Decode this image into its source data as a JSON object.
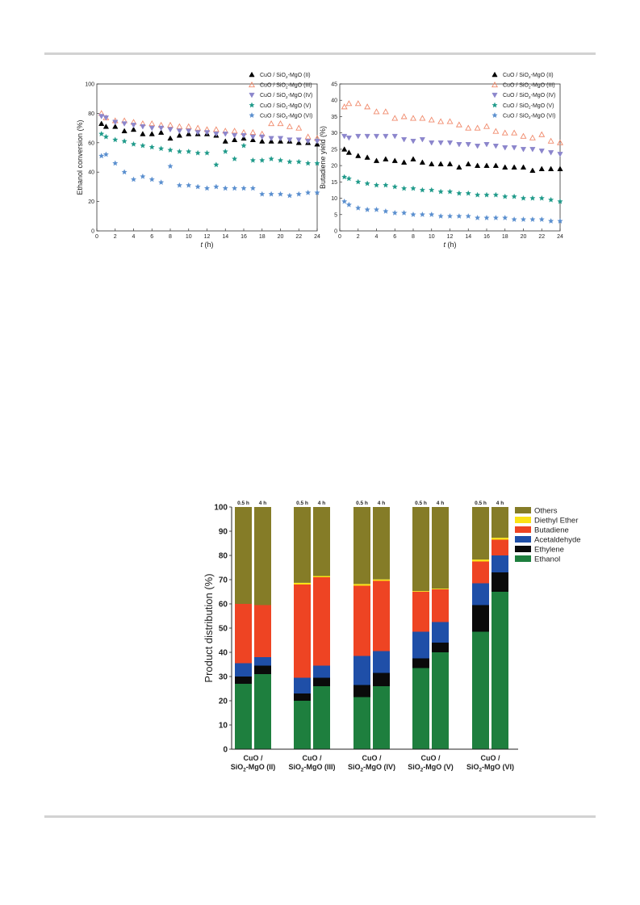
{
  "legend_series": [
    {
      "name": "CuO / SiO2-MgO (II)",
      "main": "CuO / SiO",
      "sub": "2",
      "rest": "-MgO (II)",
      "marker": "triangle-up-filled",
      "color": "#000000"
    },
    {
      "name": "CuO / SiO2-MgO (III)",
      "main": "CuO / SiO",
      "sub": "2",
      "rest": "-MgO (III)",
      "marker": "triangle-up-open",
      "color": "#f08a6c"
    },
    {
      "name": "CuO / SiO2-MgO (IV)",
      "main": "CuO / SiO",
      "sub": "2",
      "rest": "-MgO (IV)",
      "marker": "triangle-down-filled",
      "color": "#8c86cc"
    },
    {
      "name": "CuO / SiO2-MgO (V)",
      "main": "CuO / SiO",
      "sub": "2",
      "rest": "-MgO (V)",
      "marker": "star",
      "color": "#1f9a8a"
    },
    {
      "name": "CuO / SiO2-MgO (VI)",
      "main": "CuO / SiO",
      "sub": "2",
      "rest": "-MgO (VI)",
      "marker": "star",
      "color": "#5a8fcf"
    }
  ],
  "chart_data": [
    {
      "type": "scatter",
      "ylabel": "Ethanol conversion (%)",
      "xlabel_italic": "t",
      "xlabel_rest": " (h)",
      "xlim": [
        0,
        24
      ],
      "ylim": [
        0,
        100
      ],
      "xticks": [
        0,
        2,
        4,
        6,
        8,
        10,
        12,
        14,
        16,
        18,
        20,
        22,
        24
      ],
      "yticks": [
        0,
        20,
        40,
        60,
        80,
        100
      ],
      "x": [
        0.5,
        1,
        2,
        3,
        4,
        5,
        6,
        7,
        8,
        9,
        10,
        11,
        12,
        13,
        14,
        15,
        16,
        17,
        18,
        19,
        20,
        21,
        22,
        23,
        24
      ],
      "series": [
        {
          "name": "CuO / SiO2-MgO (II)",
          "values": [
            73,
            71,
            71,
            68,
            69,
            66,
            66,
            67,
            63,
            65,
            66,
            66,
            66,
            65,
            61,
            62,
            63,
            62,
            61,
            61,
            61,
            61,
            60,
            60,
            59
          ]
        },
        {
          "name": "CuO / SiO2-MgO (III)",
          "values": [
            80,
            77,
            75,
            75,
            74,
            73,
            73,
            72,
            72,
            71,
            71,
            70,
            69,
            69,
            68,
            68,
            67,
            67,
            66,
            73,
            73,
            71,
            70,
            64,
            63
          ]
        },
        {
          "name": "CuO / SiO2-MgO (IV)",
          "values": [
            78,
            77,
            74,
            73,
            72,
            71,
            70,
            70,
            69,
            68,
            68,
            67,
            67,
            66,
            66,
            65,
            65,
            64,
            64,
            63,
            63,
            62,
            62,
            61,
            61
          ]
        },
        {
          "name": "CuO / SiO2-MgO (V)",
          "values": [
            66,
            64,
            62,
            61,
            59,
            58,
            57,
            56,
            55,
            54,
            54,
            53,
            53,
            45,
            54,
            49,
            58,
            48,
            48,
            49,
            48,
            47,
            47,
            46,
            46
          ]
        },
        {
          "name": "CuO / SiO2-MgO (VI)",
          "values": [
            51,
            52,
            46,
            40,
            35,
            37,
            35,
            33,
            44,
            31,
            31,
            30,
            29,
            30,
            29,
            29,
            29,
            29,
            25,
            25,
            25,
            24,
            25,
            26,
            26
          ]
        }
      ]
    },
    {
      "type": "scatter",
      "ylabel": "Butadiene yield (%)",
      "xlabel_italic": "t",
      "xlabel_rest": " (h)",
      "xlim": [
        0,
        24
      ],
      "ylim": [
        0,
        45
      ],
      "xticks": [
        0,
        2,
        4,
        6,
        8,
        10,
        12,
        14,
        16,
        18,
        20,
        22,
        24
      ],
      "yticks": [
        0,
        5,
        10,
        15,
        20,
        25,
        30,
        35,
        40,
        45
      ],
      "x": [
        0.5,
        1,
        2,
        3,
        4,
        5,
        6,
        7,
        8,
        9,
        10,
        11,
        12,
        13,
        14,
        15,
        16,
        17,
        18,
        19,
        20,
        21,
        22,
        23,
        24
      ],
      "series": [
        {
          "name": "CuO / SiO2-MgO (II)",
          "values": [
            25,
            24,
            23,
            22.5,
            21.5,
            22,
            21.5,
            21,
            22,
            21,
            20.5,
            20.5,
            20.5,
            19.5,
            20.5,
            20,
            20,
            20,
            19.5,
            19.5,
            19.5,
            18.5,
            19,
            19,
            19
          ]
        },
        {
          "name": "CuO / SiO2-MgO (III)",
          "values": [
            38,
            39,
            39,
            38,
            36.5,
            36.5,
            34.5,
            35,
            34.5,
            34.5,
            34,
            33.5,
            33.5,
            32.5,
            31.5,
            31.5,
            32,
            30.5,
            30,
            30,
            29,
            28.5,
            29.5,
            27.5,
            27
          ]
        },
        {
          "name": "CuO / SiO2-MgO (IV)",
          "values": [
            29,
            28.5,
            29,
            29,
            29,
            29,
            29,
            28,
            27.5,
            28,
            27,
            27,
            27,
            26.5,
            26.5,
            26,
            26.5,
            26,
            25.5,
            25.5,
            25,
            25,
            24.5,
            24,
            23.5
          ]
        },
        {
          "name": "CuO / SiO2-MgO (V)",
          "values": [
            16.5,
            16,
            15,
            14.5,
            14,
            14,
            13.5,
            13,
            13,
            12.5,
            12.5,
            12,
            12,
            11.5,
            11.5,
            11,
            11,
            11,
            10.5,
            10.5,
            10,
            10,
            10,
            9.5,
            9
          ]
        },
        {
          "name": "CuO / SiO2-MgO (VI)",
          "values": [
            9,
            8,
            7,
            6.5,
            6.5,
            6,
            5.5,
            5.5,
            5,
            5,
            5,
            4.5,
            4.5,
            4.5,
            4.5,
            4,
            4,
            4,
            4,
            3.5,
            3.5,
            3.5,
            3.5,
            3,
            3
          ]
        }
      ]
    },
    {
      "type": "bar",
      "stacked": true,
      "ylabel": "Product distribution (%)",
      "ylim": [
        0,
        100
      ],
      "yticks": [
        0,
        10,
        20,
        30,
        40,
        50,
        60,
        70,
        80,
        90,
        100
      ],
      "time_labels": [
        "0.5 h",
        "4 h"
      ],
      "groups": [
        {
          "line1": "CuO /",
          "line2_main": "SiO",
          "line2_sub": "2",
          "line2_rest": "-MgO (II)"
        },
        {
          "line1": "CuO /",
          "line2_main": "SiO",
          "line2_sub": "2",
          "line2_rest": "-MgO (III)"
        },
        {
          "line1": "CuO /",
          "line2_main": "SiO",
          "line2_sub": "2",
          "line2_rest": "-MgO (IV)"
        },
        {
          "line1": "CuO /",
          "line2_main": "SiO",
          "line2_sub": "2",
          "line2_rest": "-MgO (V)"
        },
        {
          "line1": "CuO /",
          "line2_main": "SiO",
          "line2_sub": "2",
          "line2_rest": "-MgO (VI)"
        }
      ],
      "legend_order": [
        "Others",
        "Diethyl Ether",
        "Butadiene",
        "Acetaldehyde",
        "Ethylene",
        "Ethanol"
      ],
      "series": [
        {
          "name": "Ethanol",
          "color": "#1e7f3e",
          "values": [
            [
              27,
              31
            ],
            [
              20,
              26
            ],
            [
              21.5,
              26
            ],
            [
              33.5,
              40
            ],
            [
              48.5,
              65
            ]
          ]
        },
        {
          "name": "Ethylene",
          "color": "#0a0a0a",
          "values": [
            [
              3,
              3.5
            ],
            [
              3,
              3.5
            ],
            [
              5,
              5.5
            ],
            [
              4,
              4
            ],
            [
              11,
              8
            ]
          ]
        },
        {
          "name": "Acetaldehyde",
          "color": "#1f4fa8",
          "values": [
            [
              5.5,
              3.5
            ],
            [
              6.5,
              5
            ],
            [
              12,
              9
            ],
            [
              11,
              8.5
            ],
            [
              9,
              7
            ]
          ]
        },
        {
          "name": "Butadiene",
          "color": "#ee4423",
          "values": [
            [
              24.5,
              21.5
            ],
            [
              38.5,
              36.5
            ],
            [
              29,
              29
            ],
            [
              16.5,
              13.5
            ],
            [
              9,
              6.5
            ]
          ]
        },
        {
          "name": "Diethyl Ether",
          "color": "#fbe216",
          "values": [
            [
              0,
              0
            ],
            [
              0.7,
              0.5
            ],
            [
              0.7,
              0.6
            ],
            [
              0.3,
              0.3
            ],
            [
              0.8,
              0.8
            ]
          ]
        },
        {
          "name": "Others",
          "color": "#857c27",
          "values": [
            [
              40,
              40.5
            ],
            [
              31.3,
              28.5
            ],
            [
              31.8,
              29.9
            ],
            [
              34.7,
              33.7
            ],
            [
              21.7,
              12.7
            ]
          ]
        }
      ]
    }
  ]
}
